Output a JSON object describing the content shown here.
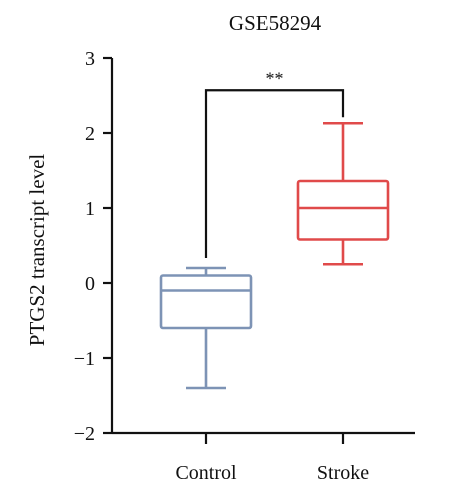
{
  "chart_data": {
    "type": "box",
    "title": "GSE58294",
    "ylabel": "PTGS2 transcript level",
    "xlabel": "",
    "ylim": [
      -2,
      3
    ],
    "yticks": [
      3,
      2,
      1,
      0,
      -1,
      -2
    ],
    "ytick_labels": [
      "3",
      "2",
      "1",
      "0",
      "−1",
      "−2"
    ],
    "categories": [
      "Control",
      "Stroke"
    ],
    "boxes": [
      {
        "category": "Control",
        "color": "#7D93B5",
        "whisker_low": -1.4,
        "q1": -0.6,
        "median": -0.1,
        "q3": 0.1,
        "whisker_high": 0.2
      },
      {
        "category": "Stroke",
        "color": "#E04A4A",
        "whisker_low": 0.25,
        "q1": 0.58,
        "median": 1.0,
        "q3": 1.36,
        "whisker_high": 2.13
      }
    ],
    "significance": {
      "between": [
        "Control",
        "Stroke"
      ],
      "label": "**",
      "y": 2.57
    }
  }
}
